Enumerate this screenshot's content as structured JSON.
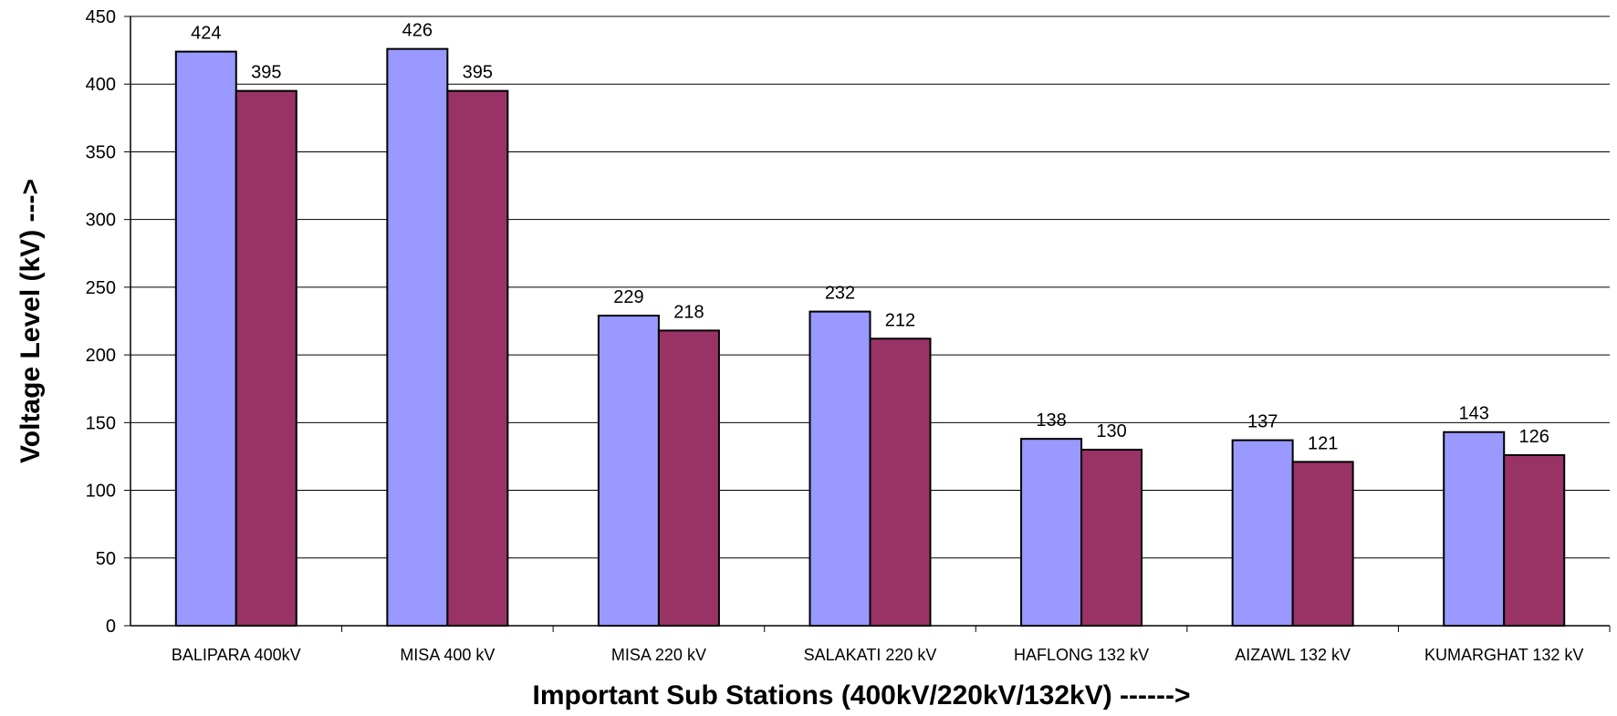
{
  "chart_data": {
    "type": "bar",
    "title": "",
    "xlabel": "Important Sub Stations (400kV/220kV/132kV) ------>",
    "ylabel": "Voltage Level (kV)  --->",
    "ylim": [
      0,
      450
    ],
    "yticks": [
      0,
      50,
      100,
      150,
      200,
      250,
      300,
      350,
      400,
      450
    ],
    "grid": true,
    "legend": "none",
    "categories": [
      "BALIPARA  400kV",
      "MISA  400 kV",
      "MISA  220 kV",
      "SALAKATI 220 kV",
      "HAFLONG 132 kV",
      "AIZAWL  132 kV",
      "KUMARGHAT 132 kV"
    ],
    "series": [
      {
        "values": [
          424,
          426,
          229,
          232,
          138,
          137,
          143
        ],
        "color": "#9999ff"
      },
      {
        "values": [
          395,
          395,
          218,
          212,
          130,
          121,
          126
        ],
        "color": "#993366"
      }
    ]
  }
}
